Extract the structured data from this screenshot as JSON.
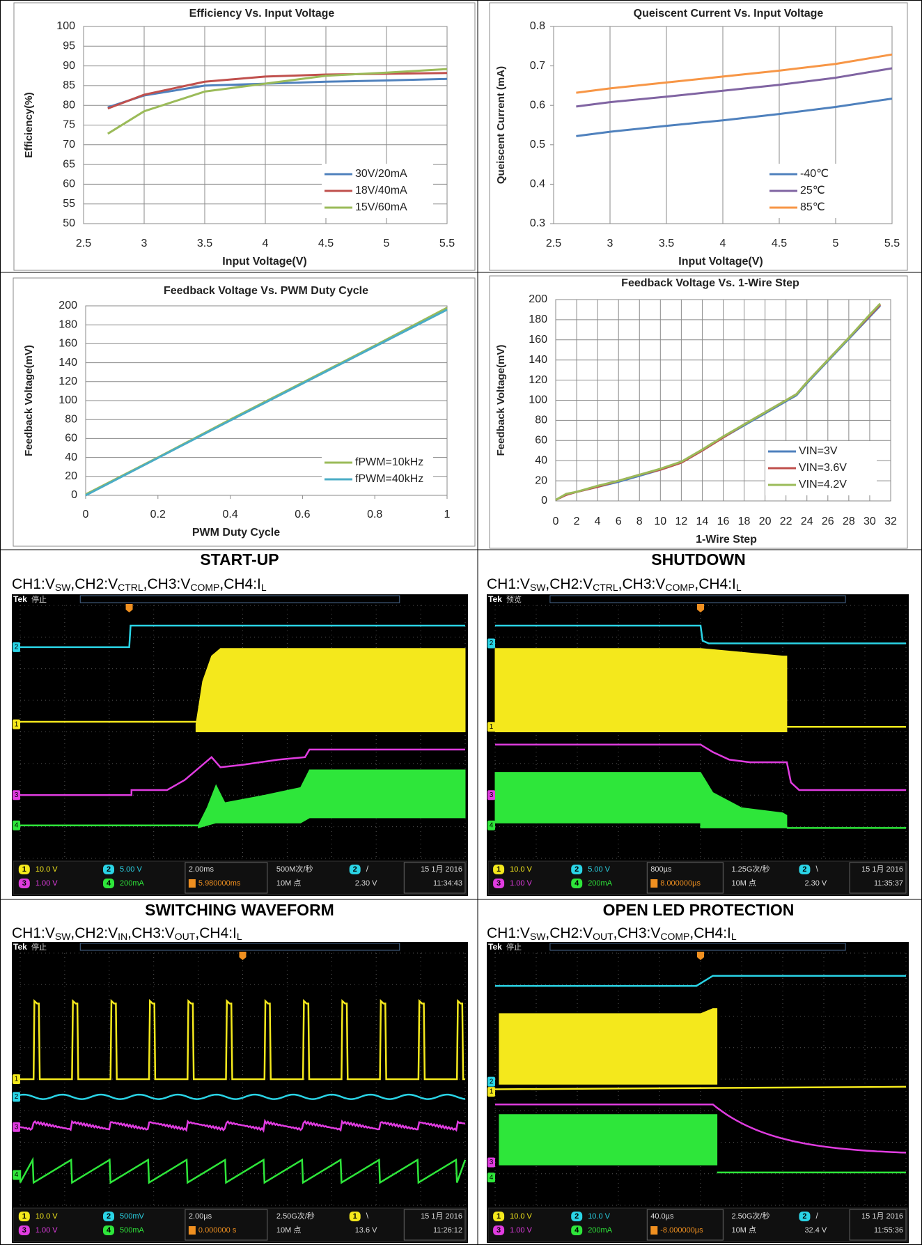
{
  "chart_data": [
    {
      "type": "line",
      "title": "Efficiency Vs. Input Voltage",
      "x_label": "Input Voltage(V)",
      "y_label": "Efficiency(%)",
      "x": [
        2.7,
        3,
        3.5,
        4,
        4.5,
        5,
        5.5
      ],
      "series": [
        {
          "name": "30V/20mA",
          "color": "#4f81bd",
          "values": [
            79.5,
            82.5,
            85,
            85.5,
            86,
            86.3,
            86.7
          ]
        },
        {
          "name": "18V/40mA",
          "color": "#c0504d",
          "values": [
            79.2,
            82.7,
            86,
            87.3,
            87.8,
            88,
            88.2
          ]
        },
        {
          "name": "15V/60mA",
          "color": "#9bbb59",
          "values": [
            72.8,
            78.5,
            83.5,
            85.5,
            87.5,
            88.3,
            89.2
          ]
        }
      ],
      "xlim": [
        2.5,
        5.5
      ],
      "xticks": [
        2.5,
        3,
        3.5,
        4,
        4.5,
        5,
        5.5
      ],
      "ylim": [
        50,
        100
      ],
      "yticks": [
        50,
        55,
        60,
        65,
        70,
        75,
        80,
        85,
        90,
        95,
        100
      ],
      "grid": "both",
      "legend": "lower right"
    },
    {
      "type": "line",
      "title": "Queiscent Current Vs. Input Voltage",
      "x_label": "Input Voltage(V)",
      "y_label": "Queiscent Current (mA)",
      "x": [
        2.7,
        3,
        3.5,
        4,
        4.5,
        5,
        5.5
      ],
      "series": [
        {
          "name": "-40℃",
          "color": "#4f81bd",
          "values": [
            0.522,
            0.533,
            0.548,
            0.562,
            0.578,
            0.596,
            0.617
          ]
        },
        {
          "name": "25℃",
          "color": "#8064a2",
          "values": [
            0.597,
            0.608,
            0.622,
            0.637,
            0.652,
            0.67,
            0.694
          ]
        },
        {
          "name": "85℃",
          "color": "#f79646",
          "values": [
            0.632,
            0.643,
            0.658,
            0.673,
            0.688,
            0.705,
            0.729
          ]
        }
      ],
      "xlim": [
        2.5,
        5.5
      ],
      "xticks": [
        2.5,
        3,
        3.5,
        4,
        4.5,
        5,
        5.5
      ],
      "ylim": [
        0.3,
        0.8
      ],
      "yticks": [
        0.3,
        0.4,
        0.5,
        0.6,
        0.7,
        0.8
      ],
      "grid": "vertical",
      "legend": "lower right"
    },
    {
      "type": "line",
      "title": "Feedback Voltage Vs. PWM Duty Cycle",
      "x_label": "PWM Duty Cycle",
      "y_label": "Feedback Voltage(mV)",
      "x": [
        0,
        0.2,
        0.4,
        0.6,
        0.8,
        1
      ],
      "series": [
        {
          "name": "fPWM=10kHz",
          "color": "#9bbb59",
          "values": [
            1,
            40,
            80,
            119,
            158,
            198
          ]
        },
        {
          "name": "fPWM=40kHz",
          "color": "#4bacc6",
          "values": [
            0,
            39.5,
            79,
            118,
            157,
            196
          ]
        }
      ],
      "xlim": [
        0,
        1
      ],
      "xticks": [
        0,
        0.2,
        0.4,
        0.6,
        0.8,
        1
      ],
      "ylim": [
        0,
        200
      ],
      "yticks": [
        0,
        20,
        40,
        60,
        80,
        100,
        120,
        140,
        160,
        180,
        200
      ],
      "grid": "horizontal",
      "legend": "lower right"
    },
    {
      "type": "line",
      "title": "Feedback Voltage Vs. 1-Wire Step",
      "x_label": "1-Wire Step",
      "y_label": "Feedback Voltage(mV)",
      "x": [
        0,
        1,
        2,
        4,
        6,
        8,
        10,
        12,
        14,
        16,
        18,
        20,
        22,
        23,
        24,
        26,
        28,
        30,
        31
      ],
      "series": [
        {
          "name": "VIN=3V",
          "color": "#4f81bd",
          "values": [
            1,
            6,
            9,
            14,
            19,
            25,
            31,
            38,
            50,
            63,
            75,
            87,
            99,
            105,
            117,
            139,
            161,
            183,
            194
          ]
        },
        {
          "name": "VIN=3.6V",
          "color": "#c0504d",
          "values": [
            1,
            6,
            9,
            14,
            20,
            26,
            31,
            38,
            50,
            63,
            76,
            88,
            100,
            106,
            118,
            140,
            162,
            184,
            195
          ]
        },
        {
          "name": "VIN=4.2V",
          "color": "#9bbb59",
          "values": [
            1,
            7,
            9,
            15,
            20,
            26,
            32,
            39,
            51,
            64,
            76,
            88,
            100,
            106,
            118,
            140,
            162,
            185,
            196
          ]
        }
      ],
      "xlim": [
        0,
        32
      ],
      "xticks": [
        0,
        2,
        4,
        6,
        8,
        10,
        12,
        14,
        16,
        18,
        20,
        22,
        24,
        26,
        28,
        30,
        32
      ],
      "ylim": [
        0,
        200
      ],
      "yticks": [
        0,
        20,
        40,
        60,
        80,
        100,
        120,
        140,
        160,
        180,
        200
      ],
      "grid": "both",
      "legend": "lower right"
    }
  ],
  "scopes": [
    {
      "title": "START-UP",
      "subtitle": [
        "CH1:V",
        "SW",
        ",CH2:V",
        "CTRL",
        ",CH3:V",
        "COMP",
        ",CH4:I",
        "L"
      ],
      "brand": "Tek",
      "status": "停止",
      "channels": [
        {
          "id": "1",
          "scale": "10.0 V"
        },
        {
          "id": "2",
          "scale": "5.00 V"
        },
        {
          "id": "3",
          "scale": "1.00 V"
        },
        {
          "id": "4",
          "scale": "200mA"
        }
      ],
      "timebase": "2.00ms",
      "trigger_position": "5.980000ms",
      "sample_rate": "500M次/秒",
      "record_length": "10M 点",
      "trigger": {
        "channel": "2",
        "slope": "/",
        "level": "2.30 V"
      },
      "date": "15 1月 2016",
      "time": "11:34:43"
    },
    {
      "title": "SHUTDOWN",
      "subtitle": [
        "CH1:V",
        "SW",
        ",CH2:V",
        "CTRL",
        ",CH3:V",
        "COMP",
        ",CH4:I",
        "L"
      ],
      "brand": "Tek",
      "status": "预览",
      "channels": [
        {
          "id": "1",
          "scale": "10.0 V"
        },
        {
          "id": "2",
          "scale": "5.00 V"
        },
        {
          "id": "3",
          "scale": "1.00 V"
        },
        {
          "id": "4",
          "scale": "200mA"
        }
      ],
      "timebase": "800µs",
      "trigger_position": "8.000000µs",
      "sample_rate": "1.25G次/秒",
      "record_length": "10M 点",
      "trigger": {
        "channel": "2",
        "slope": "\\",
        "level": "2.30 V"
      },
      "date": "15 1月 2016",
      "time": "11:35:37"
    },
    {
      "title": "SWITCHING WAVEFORM",
      "subtitle": [
        "CH1:V",
        "SW",
        ",CH2:V",
        "IN",
        ",CH3:V",
        "OUT",
        ",CH4:I",
        "L"
      ],
      "brand": "Tek",
      "status": "停止",
      "channels": [
        {
          "id": "1",
          "scale": "10.0 V"
        },
        {
          "id": "2",
          "scale": "500mV"
        },
        {
          "id": "3",
          "scale": "1.00 V"
        },
        {
          "id": "4",
          "scale": "500mA"
        }
      ],
      "timebase": "2.00µs",
      "trigger_position": "0.000000 s",
      "sample_rate": "2.50G次/秒",
      "record_length": "10M 点",
      "trigger": {
        "channel": "1",
        "slope": "\\",
        "level": "13.6 V"
      },
      "date": "15 1月 2016",
      "time": "11:26:12"
    },
    {
      "title": "OPEN LED PROTECTION",
      "subtitle": [
        "CH1:V",
        "SW",
        ",CH2:V",
        "OUT",
        ",CH3:V",
        "COMP",
        ",CH4:I",
        "L"
      ],
      "brand": "Tek",
      "status": "停止",
      "channels": [
        {
          "id": "1",
          "scale": "10.0 V"
        },
        {
          "id": "2",
          "scale": "10.0 V"
        },
        {
          "id": "3",
          "scale": "1.00 V"
        },
        {
          "id": "4",
          "scale": "200mA"
        }
      ],
      "timebase": "40.0µs",
      "trigger_position": "-8.000000µs",
      "sample_rate": "2.50G次/秒",
      "record_length": "10M 点",
      "trigger": {
        "channel": "2",
        "slope": "/",
        "level": "32.4 V"
      },
      "date": "15 1月 2016",
      "time": "11:55:36"
    }
  ]
}
